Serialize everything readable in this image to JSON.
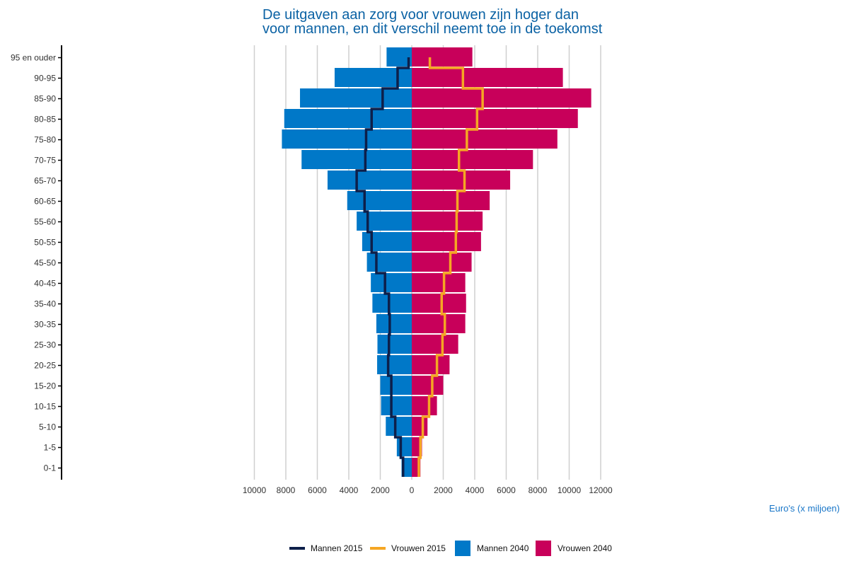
{
  "chart_data": {
    "type": "bar",
    "title_lines": [
      "De uitgaven aan zorg voor vrouwen zijn hoger dan",
      "voor mannen, en dit verschil neemt toe in de toekomst"
    ],
    "xlabel": "Euro's (x miljoen)",
    "ylabel": "",
    "categories": [
      "0-1",
      "1-5",
      "5-10",
      "10-15",
      "15-20",
      "20-25",
      "25-30",
      "30-35",
      "35-40",
      "40-45",
      "45-50",
      "50-55",
      "55-60",
      "60-65",
      "65-70",
      "70-75",
      "75-80",
      "80-85",
      "85-90",
      "90-95",
      "95 en ouder"
    ],
    "x_ticks": [
      {
        "value": -10000,
        "label": "10000"
      },
      {
        "value": -8000,
        "label": "8000"
      },
      {
        "value": -6000,
        "label": "6000"
      },
      {
        "value": -4000,
        "label": "4000"
      },
      {
        "value": -2000,
        "label": "2000"
      },
      {
        "value": 0,
        "label": "0"
      },
      {
        "value": 2000,
        "label": "2000"
      },
      {
        "value": 4000,
        "label": "4000"
      },
      {
        "value": 6000,
        "label": "6000"
      },
      {
        "value": 8000,
        "label": "8000"
      },
      {
        "value": 10000,
        "label": "10000"
      },
      {
        "value": 12000,
        "label": "12000"
      }
    ],
    "xlim": [
      -11000,
      12500
    ],
    "grid": true,
    "legend_position": "bottom",
    "series": [
      {
        "name": "Mannen 2040",
        "kind": "bar",
        "side": "left",
        "color": "#0078c8",
        "values": [
          650,
          950,
          1650,
          1950,
          2000,
          2200,
          2180,
          2250,
          2500,
          2600,
          2850,
          3150,
          3500,
          4100,
          5350,
          7000,
          8250,
          8100,
          7100,
          4900,
          1600
        ]
      },
      {
        "name": "Vrouwen 2040",
        "kind": "bar",
        "side": "right",
        "color": "#c8005a",
        "values": [
          550,
          650,
          1000,
          1600,
          2000,
          2400,
          2950,
          3400,
          3450,
          3400,
          3800,
          4400,
          4500,
          4950,
          6250,
          7700,
          9250,
          10550,
          11400,
          9600,
          3850
        ]
      },
      {
        "name": "Mannen 2015",
        "kind": "step",
        "side": "left",
        "color": "#0d1f4a",
        "values": [
          550,
          700,
          1050,
          1300,
          1300,
          1500,
          1450,
          1400,
          1450,
          1700,
          2250,
          2550,
          2800,
          3000,
          3500,
          2950,
          2900,
          2550,
          1850,
          900,
          200
        ]
      },
      {
        "name": "Vrouwen 2015",
        "kind": "step",
        "side": "right",
        "color": "#f5a623",
        "values": [
          450,
          550,
          700,
          1100,
          1300,
          1600,
          1950,
          2100,
          1900,
          2050,
          2450,
          2800,
          2850,
          2900,
          3350,
          3000,
          3500,
          4150,
          4500,
          3250,
          1150
        ]
      }
    ],
    "legend": [
      {
        "label": "Mannen 2015",
        "kind": "line",
        "color": "#0d1f4a"
      },
      {
        "label": "Vrouwen 2015",
        "kind": "line",
        "color": "#f5a623"
      },
      {
        "label": "Mannen 2040",
        "kind": "box",
        "color": "#0078c8"
      },
      {
        "label": "Vrouwen 2040",
        "kind": "box",
        "color": "#c8005a"
      }
    ],
    "colors": {
      "grid": "#cfcfcf",
      "axis": "#000000",
      "title": "#0b62a4",
      "axis_title": "#1976c8"
    }
  }
}
